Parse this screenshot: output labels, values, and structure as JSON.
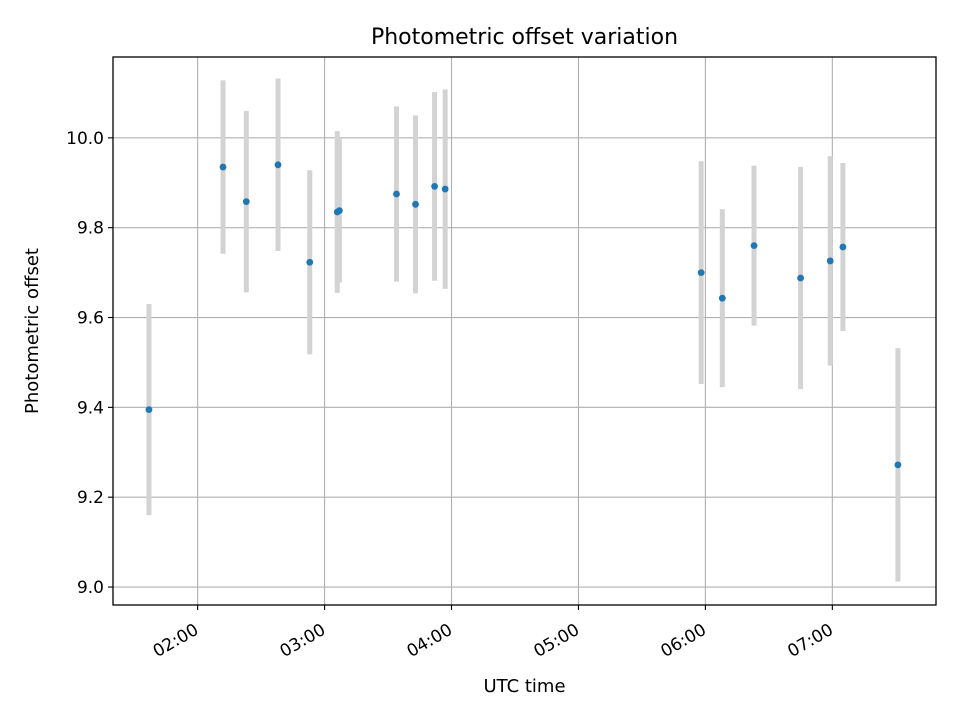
{
  "chart_data": {
    "type": "scatter",
    "title": "Photometric offset variation",
    "xlabel": "UTC time",
    "ylabel": "Photometric offset",
    "x_tick_labels": [
      "02:00",
      "03:00",
      "04:00",
      "05:00",
      "06:00",
      "07:00"
    ],
    "x_tick_values": [
      "02:00",
      "03:00",
      "04:00",
      "05:00",
      "06:00",
      "07:00"
    ],
    "xlim": [
      "01:20",
      "07:49"
    ],
    "y_tick_labels": [
      "9.0",
      "9.2",
      "9.4",
      "9.6",
      "9.8",
      "10.0"
    ],
    "y_tick_values": [
      9.0,
      9.2,
      9.4,
      9.6,
      9.8,
      10.0
    ],
    "ylim": [
      8.96,
      10.18
    ],
    "grid": true,
    "colors": {
      "marker": "#1f77b4",
      "errorbar": "#d3d3d3",
      "grid": "#b0b0b0"
    },
    "points": [
      {
        "x": "01:37",
        "y": 9.395,
        "err": 0.235
      },
      {
        "x": "02:12",
        "y": 9.935,
        "err": 0.193
      },
      {
        "x": "02:23",
        "y": 9.858,
        "err": 0.202
      },
      {
        "x": "02:38",
        "y": 9.94,
        "err": 0.192
      },
      {
        "x": "02:53",
        "y": 9.723,
        "err": 0.205
      },
      {
        "x": "03:06",
        "y": 9.835,
        "err": 0.18
      },
      {
        "x": "03:07",
        "y": 9.838,
        "err": 0.16
      },
      {
        "x": "03:34",
        "y": 9.875,
        "err": 0.195
      },
      {
        "x": "03:43",
        "y": 9.852,
        "err": 0.198
      },
      {
        "x": "03:52",
        "y": 9.892,
        "err": 0.21
      },
      {
        "x": "03:57",
        "y": 9.886,
        "err": 0.222
      },
      {
        "x": "05:58",
        "y": 9.7,
        "err": 0.248
      },
      {
        "x": "06:08",
        "y": 9.643,
        "err": 0.198
      },
      {
        "x": "06:23",
        "y": 9.76,
        "err": 0.178
      },
      {
        "x": "06:45",
        "y": 9.688,
        "err": 0.247
      },
      {
        "x": "06:59",
        "y": 9.726,
        "err": 0.233
      },
      {
        "x": "07:05",
        "y": 9.757,
        "err": 0.187
      },
      {
        "x": "07:31",
        "y": 9.272,
        "err": 0.26
      }
    ]
  }
}
